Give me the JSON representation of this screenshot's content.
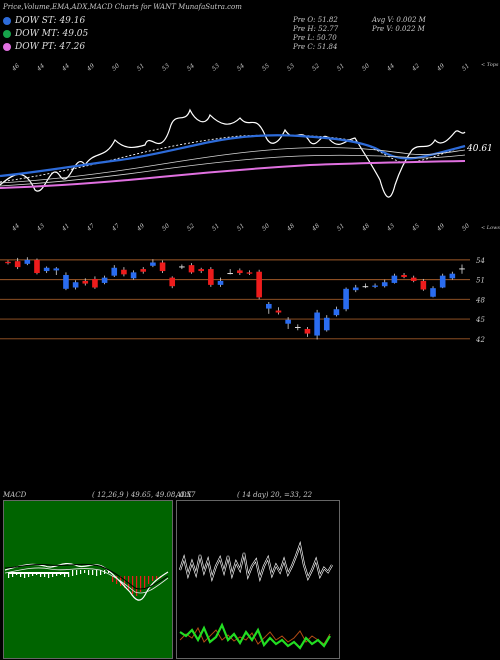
{
  "header": {
    "title": "Price,Volume,EMA,ADX,MACD Charts for WANT MunafaSutra.com"
  },
  "legend": [
    {
      "label": "DOW ST: 49.16",
      "color": "#2d6bd9"
    },
    {
      "label": "DOW MT: 49.05",
      "color": "#16a34a"
    },
    {
      "label": "DOW PT: 47.26",
      "color": "#e070e0"
    }
  ],
  "stats": {
    "open": "Pre  O: 51.82",
    "high": "Pre  H: 52.77",
    "low": "Pre  L: 50.70",
    "close": "Pre  C: 51.84",
    "avg_vol": "Avg V: 0.002  M",
    "pre_vol": "Pre  V: 0.022  M"
  },
  "price_panel": {
    "last_value_label": "40.61",
    "top_label": "< Tops",
    "low_label": "< Lows",
    "top_day_labels": [
      "46",
      "44",
      "44",
      "49",
      "50",
      "51",
      "53",
      "54",
      "53",
      "54",
      "55",
      "53",
      "52",
      "51",
      "50",
      "44",
      "42",
      "49",
      "51"
    ],
    "low_day_labels": [
      "44",
      "43",
      "41",
      "47",
      "47",
      "49",
      "50",
      "52",
      "51",
      "51",
      "50",
      "48",
      "48",
      "51",
      "48",
      "43",
      "45",
      "49",
      "50"
    ]
  },
  "candle_panel": {
    "y_ticks": [
      "54",
      "51",
      "48",
      "45",
      "42"
    ]
  },
  "macd_panel": {
    "label": "MACD",
    "values": "( 12,26,9 ) 49.65,  49.08,  0.57"
  },
  "adx_panel": {
    "label": "ADX",
    "values": "( 14  day) 20,  =33,  22"
  },
  "chart_data": [
    {
      "type": "candlestick",
      "title": "WANT",
      "y_ticks": [
        54,
        51,
        48,
        45,
        42
      ],
      "ylim": [
        40,
        55.5
      ],
      "candles": [
        {
          "o": 53.7,
          "c": 53.5,
          "h": 53.9,
          "l": 53.3
        },
        {
          "o": 53.8,
          "c": 52.9,
          "h": 54.3,
          "l": 52.6
        },
        {
          "o": 53.4,
          "c": 54.0,
          "h": 54.4,
          "l": 53.2
        },
        {
          "o": 54.0,
          "c": 52.0,
          "h": 54.2,
          "l": 51.8
        },
        {
          "o": 52.3,
          "c": 52.8,
          "h": 53.0,
          "l": 52.0
        },
        {
          "o": 52.4,
          "c": 52.7,
          "h": 52.9,
          "l": 51.7
        },
        {
          "o": 49.6,
          "c": 51.7,
          "h": 52.1,
          "l": 49.4
        },
        {
          "o": 49.8,
          "c": 50.6,
          "h": 50.9,
          "l": 49.5
        },
        {
          "o": 50.8,
          "c": 50.4,
          "h": 51.2,
          "l": 50.1
        },
        {
          "o": 51.1,
          "c": 49.8,
          "h": 51.5,
          "l": 49.6
        },
        {
          "o": 50.5,
          "c": 51.3,
          "h": 51.6,
          "l": 50.3
        },
        {
          "o": 51.6,
          "c": 52.8,
          "h": 53.2,
          "l": 51.4
        },
        {
          "o": 52.5,
          "c": 51.8,
          "h": 52.9,
          "l": 51.5
        },
        {
          "o": 51.2,
          "c": 52.1,
          "h": 52.4,
          "l": 51.0
        },
        {
          "o": 52.6,
          "c": 52.2,
          "h": 52.9,
          "l": 51.9
        },
        {
          "o": 53.1,
          "c": 53.6,
          "h": 54.1,
          "l": 52.9
        },
        {
          "o": 53.6,
          "c": 52.3,
          "h": 53.9,
          "l": 52.0
        },
        {
          "o": 51.3,
          "c": 50.0,
          "h": 51.5,
          "l": 49.7
        },
        {
          "o": 52.9,
          "c": 53.0,
          "h": 53.3,
          "l": 52.6
        },
        {
          "o": 53.2,
          "c": 52.1,
          "h": 53.5,
          "l": 51.9
        },
        {
          "o": 52.6,
          "c": 52.3,
          "h": 52.8,
          "l": 52.0
        },
        {
          "o": 52.6,
          "c": 50.2,
          "h": 52.9,
          "l": 49.9
        },
        {
          "o": 50.2,
          "c": 50.8,
          "h": 51.3,
          "l": 49.9
        },
        {
          "o": 51.9,
          "c": 52.0,
          "h": 52.6,
          "l": 51.8
        },
        {
          "o": 52.4,
          "c": 52.0,
          "h": 52.7,
          "l": 51.7
        },
        {
          "o": 52.1,
          "c": 51.9,
          "h": 52.4,
          "l": 51.7
        },
        {
          "o": 52.2,
          "c": 48.3,
          "h": 52.5,
          "l": 48.0
        },
        {
          "o": 46.6,
          "c": 47.3,
          "h": 47.6,
          "l": 45.8
        },
        {
          "o": 46.3,
          "c": 46.0,
          "h": 46.8,
          "l": 45.7
        },
        {
          "o": 44.3,
          "c": 44.9,
          "h": 45.3,
          "l": 43.5
        },
        {
          "o": 43.8,
          "c": 43.8,
          "h": 44.2,
          "l": 43.3
        },
        {
          "o": 43.5,
          "c": 42.8,
          "h": 43.8,
          "l": 42.3
        },
        {
          "o": 42.5,
          "c": 46.0,
          "h": 46.4,
          "l": 41.9
        },
        {
          "o": 43.3,
          "c": 45.2,
          "h": 45.6,
          "l": 43.1
        },
        {
          "o": 45.6,
          "c": 46.5,
          "h": 46.9,
          "l": 45.4
        },
        {
          "o": 46.5,
          "c": 49.6,
          "h": 49.8,
          "l": 46.2
        },
        {
          "o": 49.4,
          "c": 49.8,
          "h": 50.2,
          "l": 49.1
        },
        {
          "o": 50.0,
          "c": 50.0,
          "h": 50.4,
          "l": 49.7
        },
        {
          "o": 49.9,
          "c": 50.1,
          "h": 50.4,
          "l": 49.7
        },
        {
          "o": 50.0,
          "c": 50.6,
          "h": 51.0,
          "l": 49.8
        },
        {
          "o": 50.5,
          "c": 51.6,
          "h": 51.9,
          "l": 50.4
        },
        {
          "o": 51.7,
          "c": 51.4,
          "h": 52.0,
          "l": 51.2
        },
        {
          "o": 51.3,
          "c": 50.8,
          "h": 51.6,
          "l": 50.6
        },
        {
          "o": 50.8,
          "c": 49.5,
          "h": 51.1,
          "l": 49.3
        },
        {
          "o": 48.4,
          "c": 49.7,
          "h": 50.0,
          "l": 48.3
        },
        {
          "o": 49.8,
          "c": 51.6,
          "h": 51.9,
          "l": 49.7
        },
        {
          "o": 51.2,
          "c": 51.9,
          "h": 52.2,
          "l": 51.0
        },
        {
          "o": 52.6,
          "c": 52.7,
          "h": 53.3,
          "l": 51.9
        }
      ]
    }
  ],
  "colors": {
    "up": "#2a6cf0",
    "down": "#ee1c1c",
    "macd_panel_bg": "#006400",
    "hline": "#a05a28"
  }
}
